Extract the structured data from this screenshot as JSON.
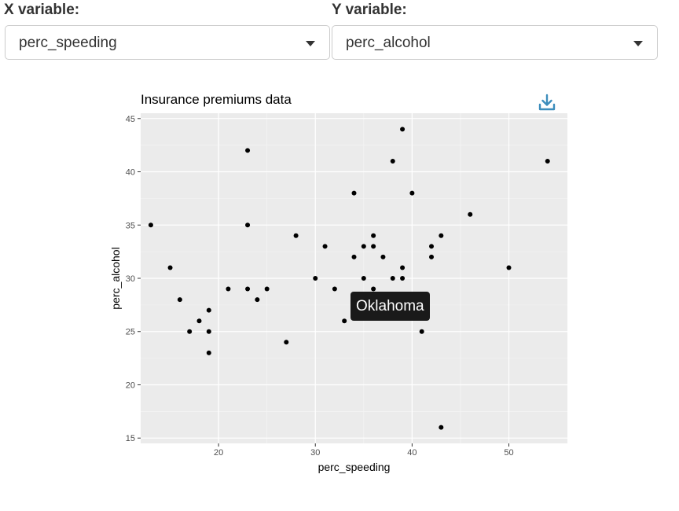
{
  "controls": {
    "x_label": "X variable:",
    "x_value": "perc_speeding",
    "y_label": "Y variable:",
    "y_value": "perc_alcohol"
  },
  "tooltip": "Oklahoma",
  "icons": {
    "download": "download-icon"
  },
  "colors": {
    "panel": "#ebebeb",
    "grid_major": "#ffffff",
    "point": "#000000",
    "download": "#3c8dbc",
    "tooltip_bg": "#1a1a1a"
  },
  "chart_data": {
    "type": "scatter",
    "title": "Insurance premiums data",
    "xlabel": "perc_speeding",
    "ylabel": "perc_alcohol",
    "xlim": [
      11.95,
      56.05
    ],
    "ylim": [
      14.5,
      45.5
    ],
    "xticks": [
      20,
      30,
      40,
      50
    ],
    "yticks": [
      15,
      20,
      25,
      30,
      35,
      40,
      45
    ],
    "grid": true,
    "points": [
      {
        "x": 13,
        "y": 35
      },
      {
        "x": 15,
        "y": 31
      },
      {
        "x": 16,
        "y": 28
      },
      {
        "x": 17,
        "y": 25
      },
      {
        "x": 18,
        "y": 26
      },
      {
        "x": 19,
        "y": 27
      },
      {
        "x": 19,
        "y": 25
      },
      {
        "x": 19,
        "y": 23
      },
      {
        "x": 21,
        "y": 29
      },
      {
        "x": 23,
        "y": 42
      },
      {
        "x": 23,
        "y": 35
      },
      {
        "x": 23,
        "y": 29
      },
      {
        "x": 24,
        "y": 28
      },
      {
        "x": 25,
        "y": 29
      },
      {
        "x": 27,
        "y": 24
      },
      {
        "x": 28,
        "y": 34
      },
      {
        "x": 30,
        "y": 30
      },
      {
        "x": 31,
        "y": 33
      },
      {
        "x": 32,
        "y": 29
      },
      {
        "x": 33,
        "y": 26
      },
      {
        "x": 34,
        "y": 38
      },
      {
        "x": 34,
        "y": 32
      },
      {
        "x": 35,
        "y": 33
      },
      {
        "x": 35,
        "y": 30
      },
      {
        "x": 36,
        "y": 34
      },
      {
        "x": 36,
        "y": 33
      },
      {
        "x": 36,
        "y": 29
      },
      {
        "x": 37,
        "y": 32
      },
      {
        "x": 38,
        "y": 41
      },
      {
        "x": 38,
        "y": 30
      },
      {
        "x": 39,
        "y": 44
      },
      {
        "x": 39,
        "y": 31
      },
      {
        "x": 39,
        "y": 30
      },
      {
        "x": 40,
        "y": 38
      },
      {
        "x": 41,
        "y": 25
      },
      {
        "x": 42,
        "y": 33
      },
      {
        "x": 42,
        "y": 32
      },
      {
        "x": 43,
        "y": 34
      },
      {
        "x": 43,
        "y": 16
      },
      {
        "x": 46,
        "y": 36
      },
      {
        "x": 50,
        "y": 31
      },
      {
        "x": 54,
        "y": 41
      }
    ]
  }
}
